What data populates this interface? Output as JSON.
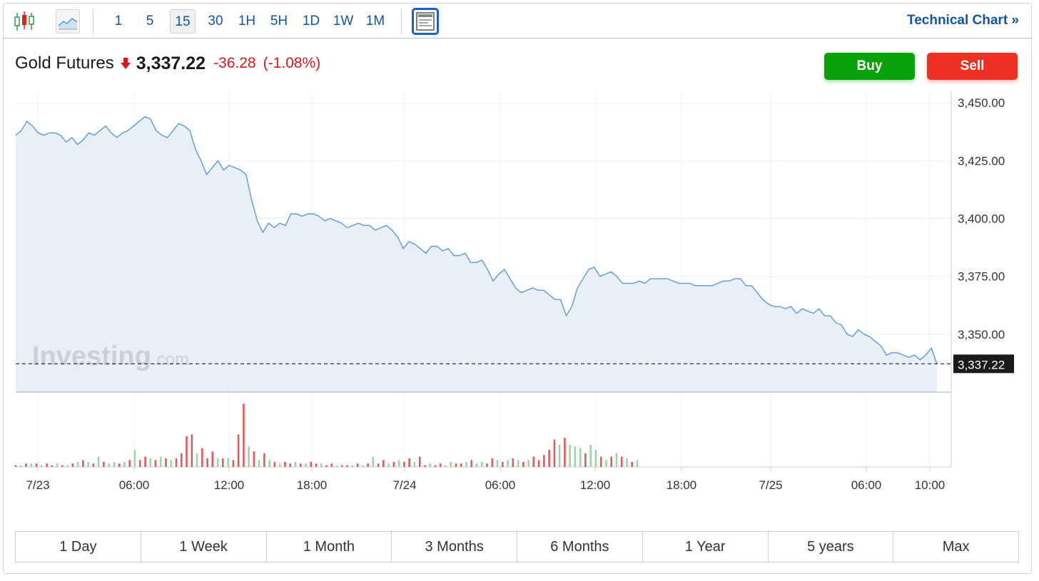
{
  "toolbar": {
    "intervals": [
      "1",
      "5",
      "15",
      "30",
      "1H",
      "5H",
      "1D",
      "1W",
      "1M"
    ],
    "active_interval": "15",
    "technical_chart_link": "Technical Chart »"
  },
  "header": {
    "instrument": "Gold Futures",
    "last_price": "3,337.22",
    "change": "-36.28",
    "change_percent": "(-1.08%)",
    "direction": "down"
  },
  "actions": {
    "buy_label": "Buy",
    "sell_label": "Sell"
  },
  "watermark": {
    "brand": "Investing",
    "suffix": ".com"
  },
  "range_buttons": [
    "1 Day",
    "1 Week",
    "1 Month",
    "3 Months",
    "6 Months",
    "1 Year",
    "5 years",
    "Max"
  ],
  "colors": {
    "accent": "#1256a0",
    "line": "#5b9bd5",
    "area": "#e9eff7",
    "down": "#e0161b",
    "buy": "#0aa20a",
    "sell": "#ee3024",
    "volume_up": "#9bd4ad",
    "volume_down": "#e25b5b"
  },
  "chart_data": {
    "type": "area",
    "ylim": [
      3325,
      3455
    ],
    "y_ticks": [
      "3,450.00",
      "3,425.00",
      "3,400.00",
      "3,375.00",
      "3,350.00"
    ],
    "last_value_label": "3,337.22",
    "last_value": 3337.22,
    "x_tick_labels": [
      "7/23",
      "06:00",
      "12:00",
      "18:00",
      "7/24",
      "06:00",
      "12:00",
      "18:00",
      "7/25",
      "06:00",
      "10:00"
    ],
    "series": [
      {
        "values": [
          3436,
          3438,
          3442,
          3440,
          3437,
          3436,
          3437,
          3437,
          3436,
          3433,
          3435,
          3432,
          3434,
          3437,
          3436,
          3438,
          3440,
          3437,
          3435,
          3437,
          3438,
          3440,
          3442,
          3444,
          3443,
          3438,
          3436,
          3435,
          3438,
          3441,
          3440,
          3438,
          3430,
          3425,
          3419,
          3422,
          3425,
          3421,
          3423,
          3422,
          3421,
          3419,
          3408,
          3399,
          3394,
          3398,
          3396,
          3398,
          3397,
          3402,
          3402,
          3401,
          3402,
          3402,
          3401,
          3399,
          3400,
          3399,
          3398,
          3396,
          3397,
          3398,
          3397,
          3397,
          3395,
          3396,
          3397,
          3395,
          3392,
          3387,
          3390,
          3389,
          3387,
          3385,
          3388,
          3388,
          3386,
          3387,
          3384,
          3384,
          3385,
          3381,
          3381,
          3382,
          3378,
          3373,
          3376,
          3378,
          3374,
          3370,
          3368,
          3369,
          3370,
          3369,
          3369,
          3367,
          3365,
          3365,
          3358,
          3362,
          3370,
          3374,
          3378,
          3379,
          3375,
          3376,
          3377,
          3375,
          3372,
          3372,
          3372,
          3373,
          3372,
          3374,
          3374,
          3374,
          3374,
          3373,
          3372,
          3372,
          3372,
          3371,
          3371,
          3371,
          3371,
          3372,
          3373,
          3373,
          3374,
          3374,
          3371,
          3371,
          3368,
          3365,
          3363,
          3362,
          3362,
          3361,
          3362,
          3359,
          3361,
          3360,
          3359,
          3361,
          3358,
          3358,
          3355,
          3354,
          3350,
          3349,
          3352,
          3350,
          3349,
          3347,
          3345,
          3341,
          3342,
          3342,
          3341,
          3340,
          3341,
          3339,
          3341,
          3344,
          3337.22
        ]
      }
    ],
    "volume": [
      {
        "v": 1,
        "d": "down"
      },
      {
        "v": 1,
        "d": "up"
      },
      {
        "v": 2,
        "d": "down"
      },
      {
        "v": 2,
        "d": "up"
      },
      {
        "v": 2,
        "d": "down"
      },
      {
        "v": 1,
        "d": "up"
      },
      {
        "v": 2,
        "d": "down"
      },
      {
        "v": 1,
        "d": "down"
      },
      {
        "v": 2,
        "d": "up"
      },
      {
        "v": 1,
        "d": "down"
      },
      {
        "v": 1,
        "d": "up"
      },
      {
        "v": 2,
        "d": "down"
      },
      {
        "v": 3,
        "d": "up"
      },
      {
        "v": 4,
        "d": "down"
      },
      {
        "v": 3,
        "d": "up"
      },
      {
        "v": 2,
        "d": "down"
      },
      {
        "v": 6,
        "d": "up"
      },
      {
        "v": 3,
        "d": "down"
      },
      {
        "v": 2,
        "d": "up"
      },
      {
        "v": 3,
        "d": "up"
      },
      {
        "v": 2,
        "d": "down"
      },
      {
        "v": 3,
        "d": "up"
      },
      {
        "v": 4,
        "d": "down"
      },
      {
        "v": 10,
        "d": "up"
      },
      {
        "v": 4,
        "d": "down"
      },
      {
        "v": 6,
        "d": "down"
      },
      {
        "v": 5,
        "d": "up"
      },
      {
        "v": 4,
        "d": "down"
      },
      {
        "v": 6,
        "d": "up"
      },
      {
        "v": 5,
        "d": "down"
      },
      {
        "v": 4,
        "d": "up"
      },
      {
        "v": 5,
        "d": "down"
      },
      {
        "v": 8,
        "d": "down"
      },
      {
        "v": 18,
        "d": "down"
      },
      {
        "v": 19,
        "d": "down"
      },
      {
        "v": 8,
        "d": "up"
      },
      {
        "v": 11,
        "d": "down"
      },
      {
        "v": 5,
        "d": "down"
      },
      {
        "v": 9,
        "d": "down"
      },
      {
        "v": 5,
        "d": "up"
      },
      {
        "v": 5,
        "d": "down"
      },
      {
        "v": 5,
        "d": "up"
      },
      {
        "v": 4,
        "d": "down"
      },
      {
        "v": 19,
        "d": "down"
      },
      {
        "v": 37,
        "d": "down"
      },
      {
        "v": 12,
        "d": "up"
      },
      {
        "v": 9,
        "d": "down"
      },
      {
        "v": 4,
        "d": "up"
      },
      {
        "v": 8,
        "d": "down"
      },
      {
        "v": 4,
        "d": "up"
      },
      {
        "v": 3,
        "d": "down"
      },
      {
        "v": 2,
        "d": "up"
      },
      {
        "v": 3,
        "d": "down"
      },
      {
        "v": 2,
        "d": "down"
      },
      {
        "v": 3,
        "d": "up"
      },
      {
        "v": 2,
        "d": "down"
      },
      {
        "v": 2,
        "d": "up"
      },
      {
        "v": 3,
        "d": "down"
      },
      {
        "v": 2,
        "d": "down"
      },
      {
        "v": 2,
        "d": "up"
      },
      {
        "v": 1,
        "d": "down"
      },
      {
        "v": 2,
        "d": "down"
      },
      {
        "v": 1,
        "d": "up"
      },
      {
        "v": 1,
        "d": "down"
      },
      {
        "v": 1,
        "d": "down"
      },
      {
        "v": 1,
        "d": "up"
      },
      {
        "v": 2,
        "d": "down"
      },
      {
        "v": 1,
        "d": "up"
      },
      {
        "v": 2,
        "d": "down"
      },
      {
        "v": 6,
        "d": "up"
      },
      {
        "v": 2,
        "d": "down"
      },
      {
        "v": 4,
        "d": "down"
      },
      {
        "v": 2,
        "d": "up"
      },
      {
        "v": 3,
        "d": "down"
      },
      {
        "v": 4,
        "d": "up"
      },
      {
        "v": 3,
        "d": "down"
      },
      {
        "v": 5,
        "d": "down"
      },
      {
        "v": 3,
        "d": "up"
      },
      {
        "v": 6,
        "d": "down"
      },
      {
        "v": 1,
        "d": "down"
      },
      {
        "v": 2,
        "d": "up"
      },
      {
        "v": 1,
        "d": "down"
      },
      {
        "v": 2,
        "d": "down"
      },
      {
        "v": 1,
        "d": "up"
      },
      {
        "v": 3,
        "d": "up"
      },
      {
        "v": 2,
        "d": "down"
      },
      {
        "v": 2,
        "d": "down"
      },
      {
        "v": 3,
        "d": "up"
      },
      {
        "v": 4,
        "d": "down"
      },
      {
        "v": 2,
        "d": "up"
      },
      {
        "v": 3,
        "d": "up"
      },
      {
        "v": 2,
        "d": "down"
      },
      {
        "v": 5,
        "d": "down"
      },
      {
        "v": 4,
        "d": "up"
      },
      {
        "v": 3,
        "d": "down"
      },
      {
        "v": 4,
        "d": "up"
      },
      {
        "v": 5,
        "d": "down"
      },
      {
        "v": 4,
        "d": "up"
      },
      {
        "v": 3,
        "d": "down"
      },
      {
        "v": 4,
        "d": "up"
      },
      {
        "v": 6,
        "d": "down"
      },
      {
        "v": 4,
        "d": "down"
      },
      {
        "v": 7,
        "d": "down"
      },
      {
        "v": 10,
        "d": "down"
      },
      {
        "v": 16,
        "d": "down"
      },
      {
        "v": 13,
        "d": "up"
      },
      {
        "v": 17,
        "d": "down"
      },
      {
        "v": 13,
        "d": "up"
      },
      {
        "v": 12,
        "d": "up"
      },
      {
        "v": 11,
        "d": "up"
      },
      {
        "v": 8,
        "d": "down"
      },
      {
        "v": 13,
        "d": "up"
      },
      {
        "v": 10,
        "d": "up"
      },
      {
        "v": 6,
        "d": "down"
      },
      {
        "v": 4,
        "d": "up"
      },
      {
        "v": 6,
        "d": "down"
      },
      {
        "v": 8,
        "d": "up"
      },
      {
        "v": 6,
        "d": "down"
      },
      {
        "v": 5,
        "d": "up"
      },
      {
        "v": 3,
        "d": "down"
      },
      {
        "v": 4,
        "d": "up"
      }
    ]
  }
}
